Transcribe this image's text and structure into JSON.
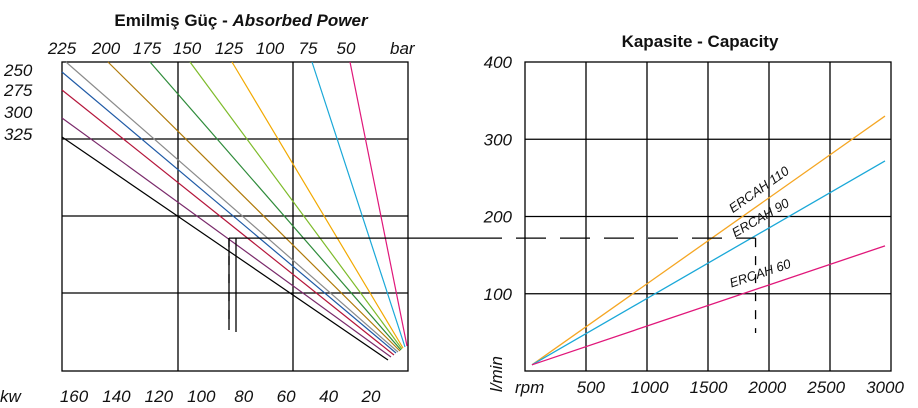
{
  "chart_data": [
    {
      "type": "line",
      "title": "Emilmiş Güç - ",
      "title_italic": "Absorbed Power",
      "xlabel": "kw",
      "top_axis_unit": "bar",
      "x_ticks": [
        "160",
        "140",
        "120",
        "100",
        "80",
        "60",
        "40",
        "20"
      ],
      "top_ticks": [
        "225",
        "200",
        "175",
        "150",
        "125",
        "100",
        "75",
        "50"
      ],
      "left_ticks": [
        "250",
        "275",
        "300",
        "325"
      ],
      "xlim": [
        175,
        0
      ],
      "grid": true,
      "series_colors": [
        "#000000",
        "#7a2a6b",
        "#b5163b",
        "#8b8b8b",
        "#b07a0a",
        "#2e8b3a",
        "#7dbb2a",
        "#f2a900",
        "#1aa8d8",
        "#e0177a"
      ]
    },
    {
      "type": "line",
      "title": "Kapasite - Capacity",
      "xlabel": "rpm",
      "ylabel": "l/min",
      "x_ticks": [
        "500",
        "1000",
        "1500",
        "2000",
        "2500",
        "3000"
      ],
      "y_ticks": [
        "100",
        "200",
        "300",
        "400"
      ],
      "xlim": [
        0,
        3000
      ],
      "ylim": [
        0,
        400
      ],
      "grid": true,
      "series": [
        {
          "name": "ERCAH 110",
          "color": "#f5a623",
          "x": [
            0,
            3000
          ],
          "y": [
            8,
            330
          ]
        },
        {
          "name": "ERCAH 90",
          "color": "#1aa8d8",
          "x": [
            0,
            3000
          ],
          "y": [
            8,
            272
          ]
        },
        {
          "name": "ERCAH 60",
          "color": "#e0177a",
          "x": [
            0,
            3000
          ],
          "y": [
            8,
            162
          ]
        }
      ],
      "example_reading": {
        "rpm": 1900,
        "flow": 172
      }
    }
  ]
}
